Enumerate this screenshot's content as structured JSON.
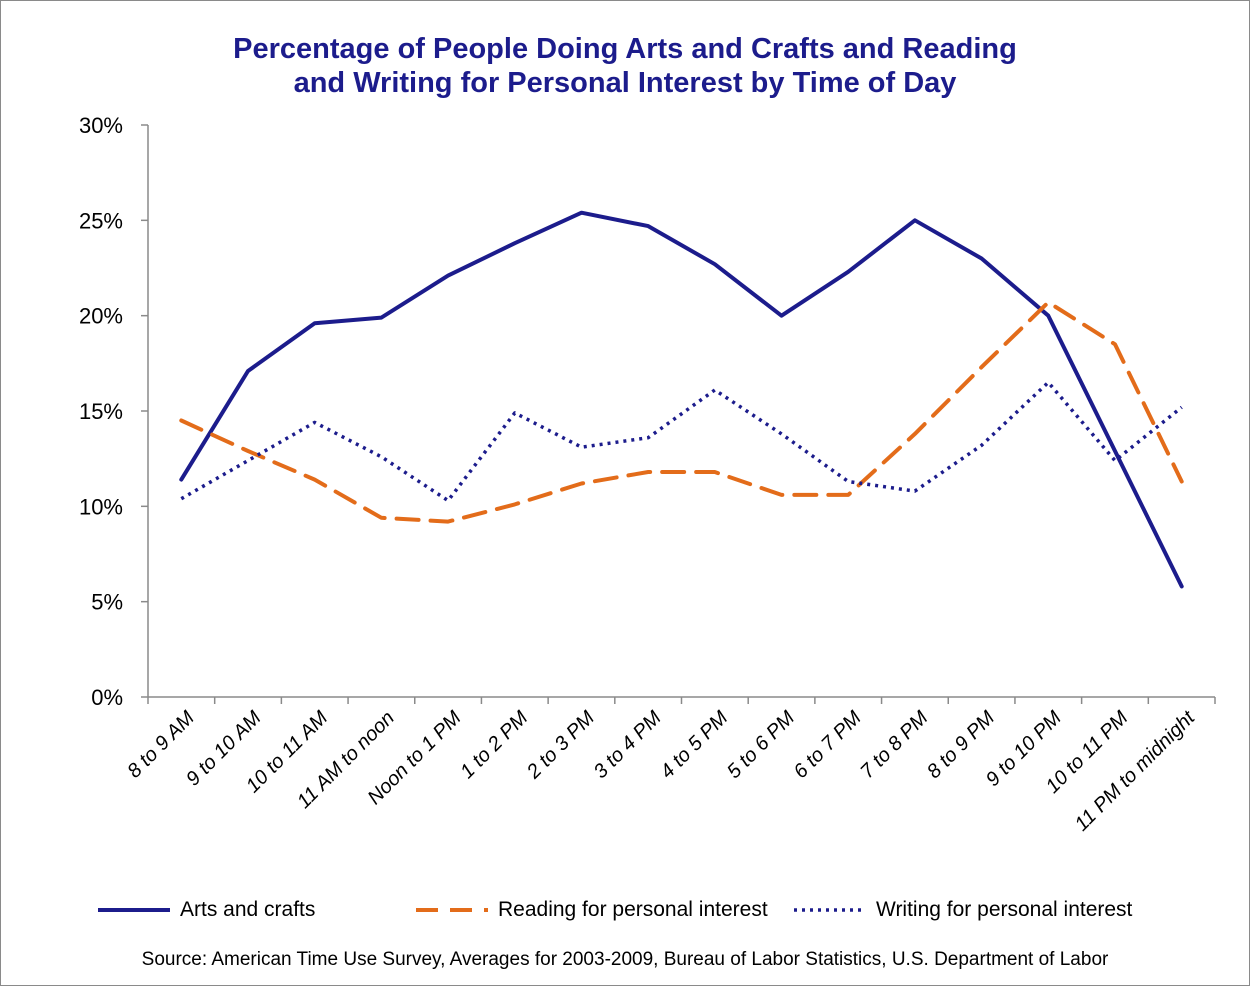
{
  "chart_data": {
    "type": "line",
    "title_line1": "Percentage of People Doing Arts and Crafts and Reading",
    "title_line2": "and Writing for Personal Interest by Time of Day",
    "categories": [
      "8 to 9 AM",
      "9 to 10 AM",
      "10 to 11 AM",
      "11 AM to noon",
      "Noon to 1 PM",
      "1 to 2 PM",
      "2 to 3 PM",
      "3 to 4 PM",
      "4 to 5 PM",
      "5 to 6 PM",
      "6 to 7 PM",
      "7 to 8 PM",
      "8 to 9 PM",
      "9 to 10 PM",
      "10 to 11 PM",
      "11 PM to midnight"
    ],
    "y_ticks": [
      "0%",
      "5%",
      "10%",
      "15%",
      "20%",
      "25%",
      "30%"
    ],
    "ylim": [
      0,
      30
    ],
    "y_unit": "percent",
    "grid": false,
    "legend_position": "bottom",
    "series": [
      {
        "name": "Arts and crafts",
        "style": "solid",
        "color": "#1c1c8c",
        "values": [
          11.4,
          17.1,
          19.6,
          19.9,
          22.1,
          23.8,
          25.4,
          24.7,
          22.7,
          20.0,
          22.3,
          25.0,
          23.0,
          20.0,
          12.9,
          5.8
        ]
      },
      {
        "name": "Reading for personal interest",
        "style": "dashed",
        "color": "#e36c1a",
        "values": [
          14.5,
          12.9,
          11.4,
          9.4,
          9.2,
          10.1,
          11.2,
          11.8,
          11.8,
          10.6,
          10.6,
          13.8,
          17.3,
          20.7,
          18.5,
          11.3
        ]
      },
      {
        "name": "Writing for personal interest",
        "style": "dotted",
        "color": "#1c1c8c",
        "values": [
          10.4,
          12.4,
          14.4,
          12.6,
          10.3,
          14.9,
          13.1,
          13.6,
          16.1,
          13.8,
          11.3,
          10.8,
          13.2,
          16.5,
          12.4,
          15.2
        ]
      }
    ],
    "source": "Source: American Time Use Survey,  Averages for 2003-2009, Bureau of Labor Statistics, U.S. Department of Labor"
  }
}
